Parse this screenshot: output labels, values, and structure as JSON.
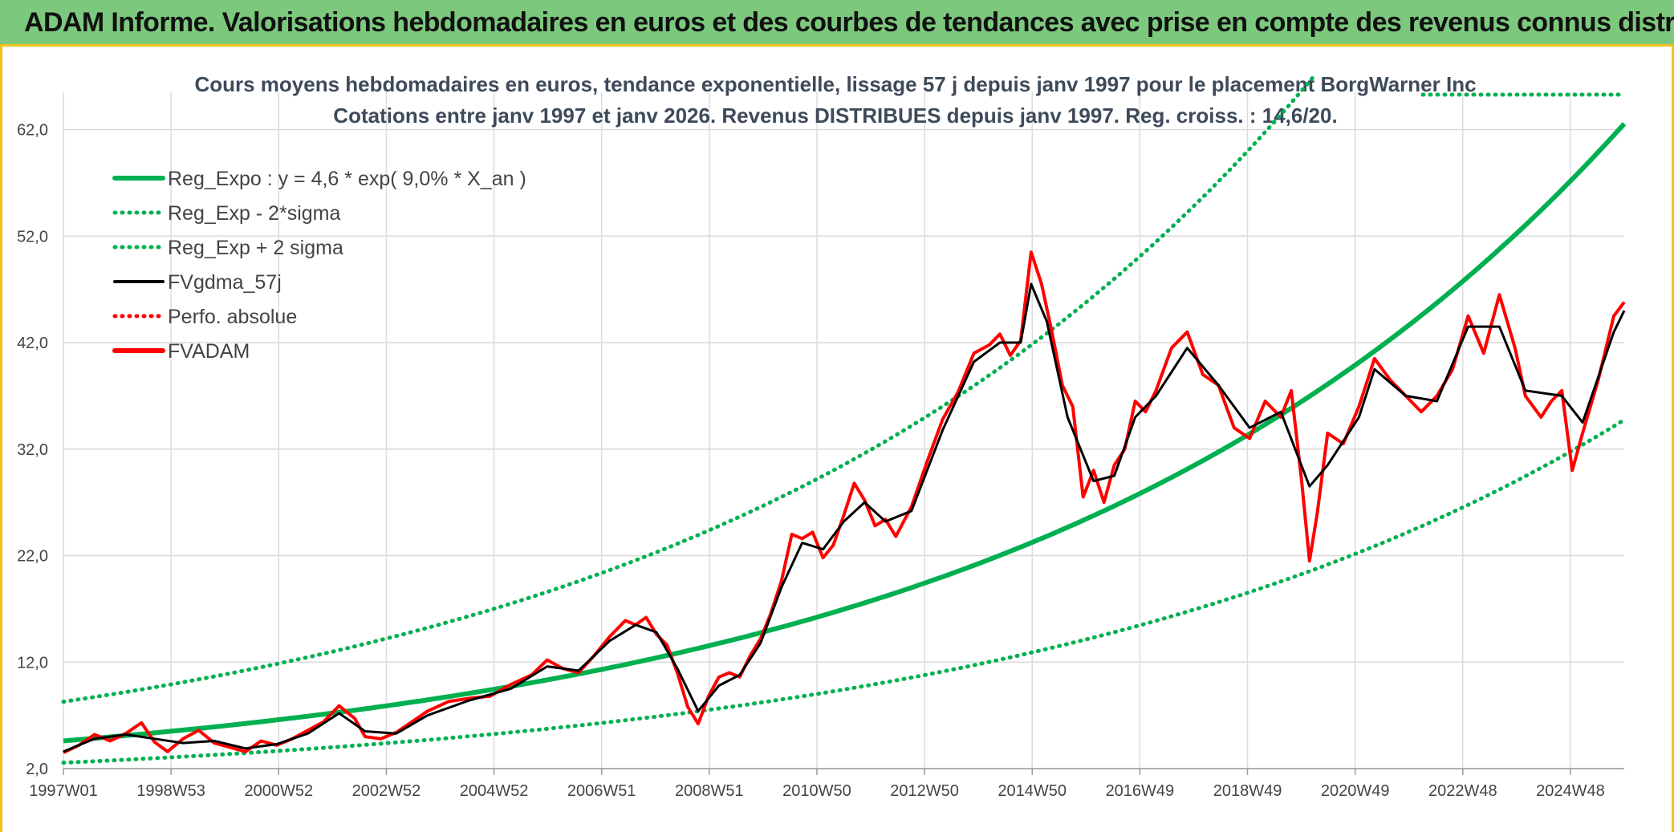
{
  "header": {
    "title": "ADAM Informe. Valorisations hebdomadaires en euros et des courbes de tendances avec prise en compte des revenus connus distribués"
  },
  "colors": {
    "banner": "#7cc97d",
    "accent_border": "#f3c21a",
    "reg_expo": "#00b050",
    "fvgdma": "#000000",
    "fvadam": "#ff0000",
    "perfo": "#ff0000"
  },
  "chart_data": {
    "type": "line",
    "title_line1": "Cours moyens hebdomadaires en euros, tendance exponentielle, lissage 57 j depuis janv 1997 pour le placement BorgWarner Inc",
    "title_line2": "Cotations entre janv 1997 et janv 2026. Revenus DISTRIBUES depuis janv 1997. Reg. croiss. : 14,6/20.",
    "xlim": [
      1997.0,
      2026.0
    ],
    "ylim": [
      2.0,
      64.0
    ],
    "y_ticks": [
      2,
      12,
      22,
      32,
      42,
      52,
      62
    ],
    "y_tick_labels": [
      "2,0",
      "12,0",
      "22,0",
      "32,0",
      "42,0",
      "52,0",
      "62,0"
    ],
    "x_ticks": [
      1997.0,
      1999.0,
      2001.0,
      2003.0,
      2005.0,
      2007.0,
      2009.0,
      2011.0,
      2013.0,
      2015.0,
      2017.0,
      2019.0,
      2021.0,
      2023.0,
      2025.0
    ],
    "x_tick_labels": [
      "1997W01",
      "1998W53",
      "2000W52",
      "2002W52",
      "2004W52",
      "2006W51",
      "2008W51",
      "2010W50",
      "2012W50",
      "2014W50",
      "2016W49",
      "2018W49",
      "2020W49",
      "2022W48",
      "2024W48"
    ],
    "grid": true,
    "legend": [
      {
        "label": "Reg_Expo : y = 4,6 * exp( 9,0% *  X_an )",
        "style": "solid-thick",
        "color": "#00b050"
      },
      {
        "label": "Reg_Exp - 2*sigma",
        "style": "dotted",
        "color": "#00b050"
      },
      {
        "label": "Reg_Exp + 2 sigma",
        "style": "dotted",
        "color": "#00b050"
      },
      {
        "label": "FVgdma_57j",
        "style": "solid",
        "color": "#000000"
      },
      {
        "label": "Perfo. absolue",
        "style": "dotted",
        "color": "#ff0000"
      },
      {
        "label": "FVADAM",
        "style": "solid-thick",
        "color": "#ff0000"
      }
    ],
    "regression": {
      "a": 4.6,
      "rate": 0.09,
      "sigma_factor": 1.8
    },
    "series": [
      {
        "name": "FVADAM",
        "points": [
          [
            1997.0,
            3.5
          ],
          [
            1997.3,
            4.2
          ],
          [
            1997.6,
            5.2
          ],
          [
            1997.9,
            4.6
          ],
          [
            1998.2,
            5.3
          ],
          [
            1998.5,
            6.3
          ],
          [
            1998.75,
            4.5
          ],
          [
            1999.0,
            3.6
          ],
          [
            1999.3,
            4.8
          ],
          [
            1999.6,
            5.6
          ],
          [
            1999.9,
            4.4
          ],
          [
            2000.2,
            4.0
          ],
          [
            2000.5,
            3.6
          ],
          [
            2000.8,
            4.6
          ],
          [
            2001.1,
            4.2
          ],
          [
            2001.4,
            4.8
          ],
          [
            2001.7,
            5.6
          ],
          [
            2002.0,
            6.4
          ],
          [
            2002.3,
            7.9
          ],
          [
            2002.6,
            6.7
          ],
          [
            2002.8,
            5.0
          ],
          [
            2003.1,
            4.8
          ],
          [
            2003.4,
            5.4
          ],
          [
            2003.7,
            6.4
          ],
          [
            2004.0,
            7.4
          ],
          [
            2004.4,
            8.3
          ],
          [
            2004.8,
            8.6
          ],
          [
            2005.2,
            8.8
          ],
          [
            2005.6,
            9.9
          ],
          [
            2006.0,
            10.8
          ],
          [
            2006.3,
            12.2
          ],
          [
            2006.6,
            11.4
          ],
          [
            2006.9,
            11.0
          ],
          [
            2007.2,
            12.6
          ],
          [
            2007.5,
            14.4
          ],
          [
            2007.8,
            15.9
          ],
          [
            2008.0,
            15.5
          ],
          [
            2008.2,
            16.2
          ],
          [
            2008.4,
            14.6
          ],
          [
            2008.6,
            13.6
          ],
          [
            2008.8,
            11.0
          ],
          [
            2009.0,
            7.8
          ],
          [
            2009.2,
            6.2
          ],
          [
            2009.4,
            8.8
          ],
          [
            2009.6,
            10.6
          ],
          [
            2009.8,
            11.0
          ],
          [
            2010.0,
            10.6
          ],
          [
            2010.2,
            12.6
          ],
          [
            2010.4,
            14.2
          ],
          [
            2010.6,
            16.6
          ],
          [
            2010.8,
            19.6
          ],
          [
            2011.0,
            24.0
          ],
          [
            2011.2,
            23.6
          ],
          [
            2011.4,
            24.2
          ],
          [
            2011.6,
            21.8
          ],
          [
            2011.8,
            23.0
          ],
          [
            2012.0,
            25.8
          ],
          [
            2012.2,
            28.8
          ],
          [
            2012.4,
            27.2
          ],
          [
            2012.6,
            24.8
          ],
          [
            2012.8,
            25.4
          ],
          [
            2013.0,
            23.8
          ],
          [
            2013.3,
            26.6
          ],
          [
            2013.6,
            30.8
          ],
          [
            2013.9,
            34.8
          ],
          [
            2014.2,
            37.4
          ],
          [
            2014.5,
            41.0
          ],
          [
            2014.8,
            41.8
          ],
          [
            2015.0,
            42.8
          ],
          [
            2015.2,
            40.8
          ],
          [
            2015.4,
            42.2
          ],
          [
            2015.6,
            50.5
          ],
          [
            2015.8,
            47.5
          ],
          [
            2016.0,
            43.0
          ],
          [
            2016.2,
            38.0
          ],
          [
            2016.4,
            36.0
          ],
          [
            2016.6,
            27.5
          ],
          [
            2016.8,
            30.0
          ],
          [
            2017.0,
            27.0
          ],
          [
            2017.2,
            30.5
          ],
          [
            2017.4,
            32.0
          ],
          [
            2017.6,
            36.5
          ],
          [
            2017.8,
            35.5
          ],
          [
            2018.0,
            37.5
          ],
          [
            2018.3,
            41.5
          ],
          [
            2018.6,
            43.0
          ],
          [
            2018.9,
            39.0
          ],
          [
            2019.2,
            38.0
          ],
          [
            2019.5,
            34.0
          ],
          [
            2019.8,
            33.0
          ],
          [
            2020.1,
            36.5
          ],
          [
            2020.4,
            35.0
          ],
          [
            2020.6,
            37.5
          ],
          [
            2020.8,
            29.0
          ],
          [
            2020.95,
            21.5
          ],
          [
            2021.1,
            26.0
          ],
          [
            2021.3,
            33.5
          ],
          [
            2021.6,
            32.5
          ],
          [
            2021.9,
            36.0
          ],
          [
            2022.2,
            40.5
          ],
          [
            2022.5,
            38.5
          ],
          [
            2022.8,
            37.0
          ],
          [
            2023.1,
            35.5
          ],
          [
            2023.4,
            37.0
          ],
          [
            2023.7,
            39.5
          ],
          [
            2024.0,
            44.5
          ],
          [
            2024.3,
            41.0
          ],
          [
            2024.6,
            46.5
          ],
          [
            2024.9,
            41.5
          ],
          [
            2025.1,
            37.0
          ],
          [
            2025.4,
            35.0
          ],
          [
            2025.6,
            36.5
          ],
          [
            2025.8,
            37.5
          ],
          [
            2026.0,
            30.0
          ],
          [
            2026.2,
            33.5
          ],
          [
            2026.5,
            38.5
          ],
          [
            2026.8,
            44.5
          ],
          [
            2027.0,
            45.8
          ]
        ]
      },
      {
        "name": "FVgdma_57j",
        "points": [
          [
            1997.0,
            3.6
          ],
          [
            1997.6,
            4.8
          ],
          [
            1998.2,
            5.2
          ],
          [
            1998.75,
            4.8
          ],
          [
            1999.3,
            4.4
          ],
          [
            1999.9,
            4.6
          ],
          [
            2000.5,
            3.9
          ],
          [
            2001.1,
            4.3
          ],
          [
            2001.7,
            5.3
          ],
          [
            2002.3,
            7.2
          ],
          [
            2002.8,
            5.5
          ],
          [
            2003.4,
            5.3
          ],
          [
            2004.0,
            7.0
          ],
          [
            2004.8,
            8.4
          ],
          [
            2005.6,
            9.5
          ],
          [
            2006.3,
            11.6
          ],
          [
            2006.9,
            11.2
          ],
          [
            2007.5,
            14.0
          ],
          [
            2008.0,
            15.5
          ],
          [
            2008.4,
            14.8
          ],
          [
            2008.8,
            11.4
          ],
          [
            2009.2,
            7.4
          ],
          [
            2009.6,
            9.8
          ],
          [
            2010.0,
            10.8
          ],
          [
            2010.4,
            13.8
          ],
          [
            2010.8,
            19.0
          ],
          [
            2011.2,
            23.2
          ],
          [
            2011.6,
            22.6
          ],
          [
            2012.0,
            25.2
          ],
          [
            2012.4,
            27.0
          ],
          [
            2012.8,
            25.2
          ],
          [
            2013.3,
            26.2
          ],
          [
            2013.9,
            33.8
          ],
          [
            2014.5,
            40.2
          ],
          [
            2015.0,
            42.0
          ],
          [
            2015.4,
            42.0
          ],
          [
            2015.6,
            47.5
          ],
          [
            2015.9,
            44.0
          ],
          [
            2016.3,
            35.0
          ],
          [
            2016.8,
            29.0
          ],
          [
            2017.2,
            29.5
          ],
          [
            2017.6,
            35.0
          ],
          [
            2018.0,
            37.0
          ],
          [
            2018.6,
            41.5
          ],
          [
            2019.2,
            38.0
          ],
          [
            2019.8,
            34.0
          ],
          [
            2020.4,
            35.5
          ],
          [
            2020.95,
            28.5
          ],
          [
            2021.3,
            30.5
          ],
          [
            2021.9,
            35.0
          ],
          [
            2022.2,
            39.5
          ],
          [
            2022.8,
            37.0
          ],
          [
            2023.4,
            36.5
          ],
          [
            2024.0,
            43.5
          ],
          [
            2024.6,
            43.5
          ],
          [
            2025.1,
            37.5
          ],
          [
            2025.8,
            37.0
          ],
          [
            2026.2,
            34.5
          ],
          [
            2026.8,
            43.0
          ],
          [
            2027.0,
            45.0
          ]
        ]
      }
    ]
  }
}
